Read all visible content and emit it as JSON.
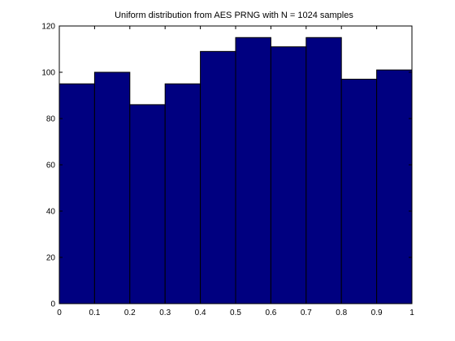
{
  "chart_data": {
    "type": "bar",
    "title": "Uniform distribution from AES PRNG with N = 1024 samples",
    "xlabel": "",
    "ylabel": "",
    "bin_edges": [
      0,
      0.1,
      0.2,
      0.3,
      0.4,
      0.5,
      0.6,
      0.7,
      0.8,
      0.9,
      1
    ],
    "values": [
      95,
      100,
      86,
      95,
      109,
      115,
      111,
      115,
      97,
      101
    ],
    "xlim": [
      0,
      1
    ],
    "ylim": [
      0,
      120
    ],
    "xticks": [
      "0",
      "0.1",
      "0.2",
      "0.3",
      "0.4",
      "0.5",
      "0.6",
      "0.7",
      "0.8",
      "0.9",
      "1"
    ],
    "yticks": [
      "0",
      "20",
      "40",
      "60",
      "80",
      "100",
      "120"
    ],
    "grid": false,
    "legend": "none",
    "colors": {
      "bar_fill": "#000080",
      "bar_edge": "#000000",
      "background": "#ffffff",
      "axes": "#000000"
    }
  }
}
